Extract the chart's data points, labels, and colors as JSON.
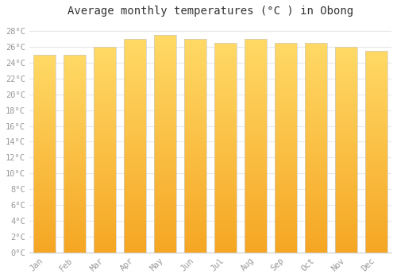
{
  "title": "Average monthly temperatures (°C ) in Obong",
  "months": [
    "Jan",
    "Feb",
    "Mar",
    "Apr",
    "May",
    "Jun",
    "Jul",
    "Aug",
    "Sep",
    "Oct",
    "Nov",
    "Dec"
  ],
  "values": [
    25.0,
    25.0,
    26.0,
    27.0,
    27.5,
    27.0,
    26.5,
    27.0,
    26.5,
    26.5,
    26.0,
    25.5
  ],
  "bar_color_bottom": "#F5A623",
  "bar_color_top": "#FFD966",
  "background_color": "#ffffff",
  "grid_color": "#e8e8e8",
  "ylim": [
    0,
    29
  ],
  "ytick_step": 2,
  "title_fontsize": 10,
  "tick_fontsize": 7.5,
  "tick_color": "#999999",
  "bar_width": 0.75
}
